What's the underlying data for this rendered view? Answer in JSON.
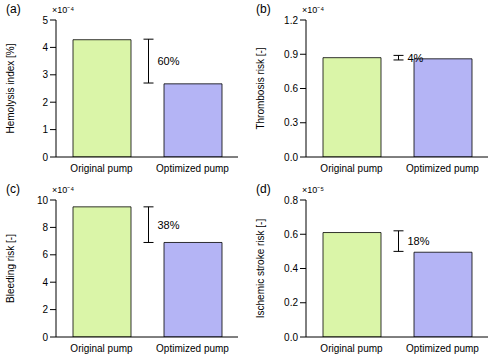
{
  "chart_data": [
    {
      "type": "bar",
      "title": "(a)",
      "y_label": "Hemolysis index [%]",
      "y_multiplier": "×10⁻⁴",
      "categories": [
        "Original pump",
        "Optimized pump"
      ],
      "values": [
        4.28,
        2.67
      ],
      "colors": [
        "#daf5a8",
        "#b4b4f5"
      ],
      "ylim": [
        0,
        5
      ],
      "yticks": [
        0,
        1,
        2,
        3,
        4,
        5
      ],
      "annotation": {
        "text": "60%",
        "y_range": [
          4.3,
          2.7
        ]
      }
    },
    {
      "type": "bar",
      "title": "(b)",
      "y_label": "Thrombosis risk [-]",
      "y_multiplier": "×10⁻⁴",
      "categories": [
        "Original pump",
        "Optimized pump"
      ],
      "values": [
        0.87,
        0.86
      ],
      "colors": [
        "#daf5a8",
        "#b4b4f5"
      ],
      "ylim": [
        0,
        1.2
      ],
      "yticks": [
        {
          "value": 0,
          "label": "0.0"
        },
        0.3,
        0.6,
        0.9,
        1.2
      ],
      "annotation": {
        "text": "4%",
        "y_range": [
          0.89,
          0.85
        ]
      }
    },
    {
      "type": "bar",
      "title": "(c)",
      "y_label": "Bleeding risk [-]",
      "y_multiplier": "×10⁻⁴",
      "categories": [
        "Original pump",
        "Optimized pump"
      ],
      "values": [
        9.5,
        6.9
      ],
      "colors": [
        "#daf5a8",
        "#b4b4f5"
      ],
      "ylim": [
        0,
        10
      ],
      "yticks": [
        0,
        2,
        4,
        6,
        8,
        10
      ],
      "annotation": {
        "text": "38%",
        "y_range": [
          9.5,
          6.9
        ]
      }
    },
    {
      "type": "bar",
      "title": "(d)",
      "y_label": "Ischemic stroke risk [-]",
      "y_multiplier": "×10⁻⁵",
      "categories": [
        "Original pump",
        "Optimized pump"
      ],
      "values": [
        0.61,
        0.495
      ],
      "colors": [
        "#daf5a8",
        "#b4b4f5"
      ],
      "ylim": [
        0,
        0.8
      ],
      "yticks": [
        {
          "value": 0,
          "label": "0.0"
        },
        0.2,
        0.4,
        0.6,
        0.8
      ],
      "annotation": {
        "text": "18%",
        "y_range": [
          0.62,
          0.5
        ]
      }
    }
  ]
}
